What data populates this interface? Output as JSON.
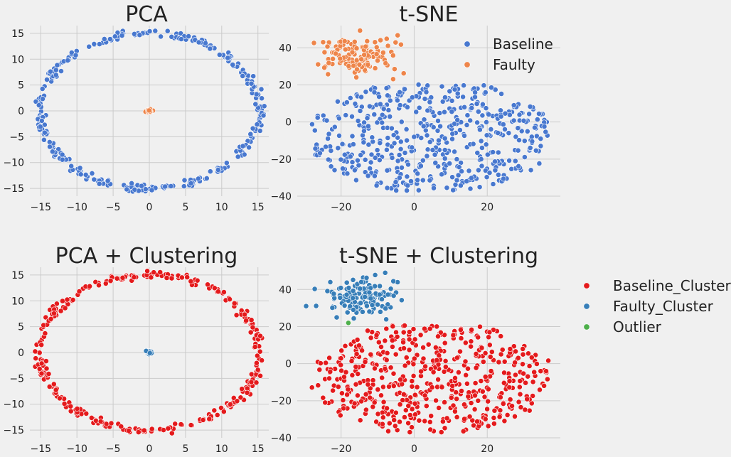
{
  "figure": {
    "background": "#f0f0f0",
    "grid_color": "#cbcbcb"
  },
  "chart_data": [
    {
      "type": "scatter",
      "title": "PCA",
      "xlabel": "",
      "ylabel": "",
      "xlim": [
        -16.5,
        16.5
      ],
      "ylim": [
        -16.5,
        16.5
      ],
      "xticks": [
        -15,
        -10,
        -5,
        0,
        5,
        10,
        15
      ],
      "yticks": [
        -15,
        -10,
        -5,
        0,
        5,
        10,
        15
      ],
      "grid": true,
      "legend": null,
      "series": [
        {
          "name": "Baseline",
          "color": "#4878cf",
          "shape": "ring",
          "center": [
            0,
            0
          ],
          "radius": [
            15.2,
            15.0
          ],
          "count": 300
        },
        {
          "name": "Faulty",
          "color": "#ee854a",
          "shape": "cluster",
          "center": [
            0,
            0
          ],
          "spread": [
            0.25,
            0.15
          ],
          "count": 40
        }
      ]
    },
    {
      "type": "scatter",
      "title": "t-SNE",
      "xlabel": "",
      "ylabel": "",
      "xlim": [
        -32,
        40
      ],
      "ylim": [
        -40,
        52
      ],
      "xticks": [
        -20,
        0,
        20
      ],
      "yticks": [
        -40,
        -20,
        0,
        20,
        40
      ],
      "grid": true,
      "legend": {
        "placement": "top-right",
        "entries": [
          "Baseline",
          "Faulty"
        ]
      },
      "series": [
        {
          "name": "Baseline",
          "color": "#4878cf",
          "shape": "blob",
          "x_range": [
            -28,
            37
          ],
          "y_range": [
            -37,
            21
          ],
          "count": 500
        },
        {
          "name": "Faulty",
          "color": "#ee854a",
          "shape": "cluster",
          "center": [
            -15,
            36
          ],
          "spread": [
            7,
            6
          ],
          "count": 130
        }
      ]
    },
    {
      "type": "scatter",
      "title": "PCA + Clustering",
      "xlabel": "",
      "ylabel": "",
      "xlim": [
        -16.5,
        16.5
      ],
      "ylim": [
        -16.5,
        16.5
      ],
      "xticks": [
        -15,
        -10,
        -5,
        0,
        5,
        10,
        15
      ],
      "yticks": [
        -15,
        -10,
        -5,
        0,
        5,
        10,
        15
      ],
      "grid": true,
      "legend": null,
      "series": [
        {
          "name": "Baseline_Cluster",
          "color": "#e41a1c",
          "shape": "ring",
          "center": [
            0,
            0
          ],
          "radius": [
            15.2,
            15.0
          ],
          "count": 300
        },
        {
          "name": "Faulty_Cluster",
          "color": "#377eb8",
          "shape": "cluster",
          "center": [
            0,
            0
          ],
          "spread": [
            0.25,
            0.15
          ],
          "count": 40
        }
      ]
    },
    {
      "type": "scatter",
      "title": "t-SNE + Clustering",
      "xlabel": "",
      "ylabel": "",
      "xlim": [
        -32,
        40
      ],
      "ylim": [
        -40,
        52
      ],
      "xticks": [
        -20,
        0,
        20
      ],
      "yticks": [
        -40,
        -20,
        0,
        20,
        40
      ],
      "grid": true,
      "legend": {
        "placement": "outside-right",
        "entries": [
          "Baseline_Cluster",
          "Faulty_Cluster",
          "Outlier"
        ]
      },
      "series": [
        {
          "name": "Baseline_Cluster",
          "color": "#e41a1c",
          "shape": "blob",
          "x_range": [
            -28,
            37
          ],
          "y_range": [
            -37,
            21
          ],
          "count": 500
        },
        {
          "name": "Faulty_Cluster",
          "color": "#377eb8",
          "shape": "cluster",
          "center": [
            -15,
            36
          ],
          "spread": [
            7,
            6
          ],
          "count": 130
        },
        {
          "name": "Outlier",
          "color": "#4daf4a",
          "shape": "points",
          "points": [
            [
              -18,
              22
            ]
          ]
        }
      ]
    }
  ]
}
